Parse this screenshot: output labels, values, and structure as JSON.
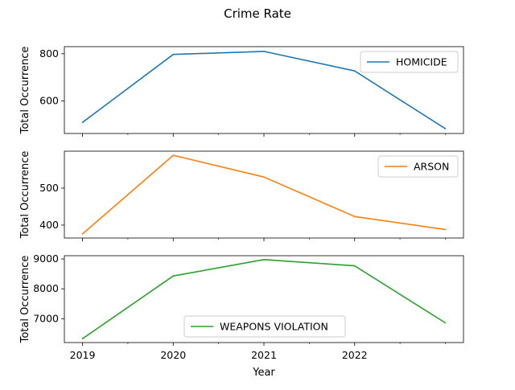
{
  "figure": {
    "title": "Crime Rate",
    "xlabel": "Year",
    "x_ticks": [
      "2019",
      "2020",
      "2021",
      "2022"
    ]
  },
  "chart_data": [
    {
      "type": "line",
      "x": [
        2019,
        2020,
        2021,
        2022,
        2023
      ],
      "series": [
        {
          "name": "HOMICIDE",
          "values": [
            509,
            797,
            810,
            727,
            482
          ],
          "color": "#1f77b4"
        }
      ],
      "ylabel": "Total Occurrence",
      "yticks": [
        600,
        800
      ],
      "ylim": [
        462,
        830
      ],
      "legend": "upper right"
    },
    {
      "type": "line",
      "x": [
        2019,
        2020,
        2021,
        2022,
        2023
      ],
      "series": [
        {
          "name": "ARSON",
          "values": [
            376,
            589,
            530,
            423,
            388
          ],
          "color": "#ff7f0e"
        }
      ],
      "ylabel": "Total Occurrence",
      "yticks": [
        400,
        500
      ],
      "ylim": [
        365,
        600
      ],
      "legend": "upper right"
    },
    {
      "type": "line",
      "x": [
        2019,
        2020,
        2021,
        2022,
        2023
      ],
      "series": [
        {
          "name": "WEAPONS VIOLATION",
          "values": [
            6330,
            8430,
            8980,
            8770,
            6860
          ],
          "color": "#2ca02c"
        }
      ],
      "ylabel": "Total Occurrence",
      "yticks": [
        7000,
        8000,
        9000
      ],
      "ylim": [
        6200,
        9110
      ],
      "legend": "lower center"
    }
  ]
}
